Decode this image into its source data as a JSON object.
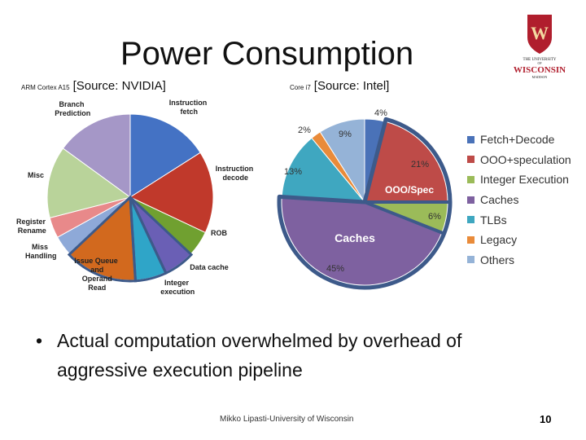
{
  "slide": {
    "title": "Power Consumption",
    "source_left_small": "ARM Cortex A15",
    "source_left": "[Source: NVIDIA]",
    "source_right_small": "Core i7",
    "source_right": "[Source: Intel]",
    "logo_text_top": "THE UNIVERSITY",
    "logo_text_of": "OF",
    "logo_text_main": "WISCONSIN",
    "logo_text_bottom": "MADISON",
    "logo_letter": "W",
    "bullet": "•",
    "bullet_text": "Actual computation overwhelmed by overhead of aggressive execution pipeline",
    "footer": "Mikko Lipasti-University of Wisconsin",
    "page_number": "10"
  },
  "chart_data": [
    {
      "type": "pie",
      "title": "",
      "slices": [
        {
          "label": "Instruction fetch",
          "value": 16,
          "color": "#4472C4"
        },
        {
          "label": "Instruction decode",
          "value": 16,
          "color": "#C0392B"
        },
        {
          "label": "ROB",
          "value": 5,
          "color": "#70A030"
        },
        {
          "label": "Data cache",
          "value": 6,
          "color": "#6A5FB5"
        },
        {
          "label": "Integer execution",
          "value": 6,
          "color": "#2FA5C8"
        },
        {
          "label": "Issue Queue and Operand Read",
          "value": 14,
          "color": "#D2691E"
        },
        {
          "label": "Miss Handling",
          "value": 4,
          "color": "#8EA9D8"
        },
        {
          "label": "Register Rename",
          "value": 4,
          "color": "#E8898A"
        },
        {
          "label": "Misc",
          "value": 14,
          "color": "#B9D39A"
        },
        {
          "label": "Branch Prediction",
          "value": 15,
          "color": "#A597C7"
        }
      ],
      "annotations": [
        "Data cache",
        "Integer execution",
        "Issue Queue and Operand Read"
      ]
    },
    {
      "type": "pie",
      "title": "",
      "slices": [
        {
          "name": "Fetch+Decode",
          "value": 4,
          "label": "4%",
          "color": "#4A72B8"
        },
        {
          "name": "OOO+speculation",
          "value": 21,
          "label": "21%",
          "color": "#BE4B48"
        },
        {
          "name": "Integer Execution",
          "value": 6,
          "label": "6%",
          "color": "#9BBB59"
        },
        {
          "name": "Caches",
          "value": 45,
          "label": "45%",
          "color": "#7E61A0"
        },
        {
          "name": "TLBs",
          "value": 13,
          "label": "13%",
          "color": "#3FA7C0"
        },
        {
          "name": "Legacy",
          "value": 2,
          "label": "2%",
          "color": "#E98B3A"
        },
        {
          "name": "Others",
          "value": 9,
          "label": "9%",
          "color": "#95B3D7"
        }
      ],
      "overlay_labels": [
        "OOO/Spec",
        "Caches"
      ],
      "legend_position": "right"
    }
  ]
}
